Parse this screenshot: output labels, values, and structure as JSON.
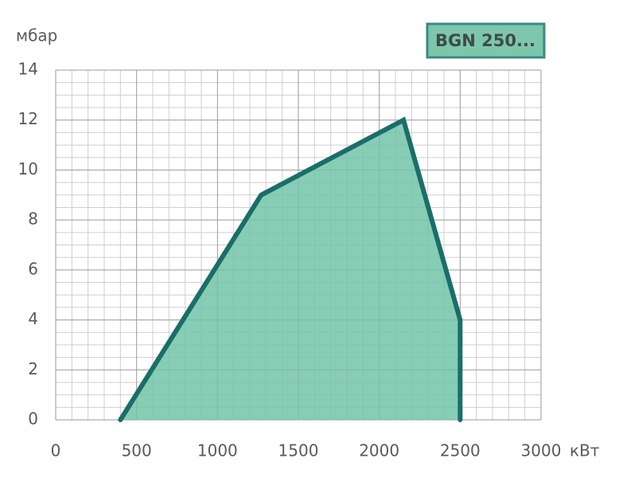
{
  "chart_data": {
    "type": "area",
    "title": "BGN 250...",
    "y_label": "мбар",
    "x_label": "кВт",
    "x": [
      400,
      1270,
      2150,
      2500,
      2500
    ],
    "values": [
      0,
      9,
      12,
      4,
      0
    ],
    "fill_color": "#72c3a8",
    "line_color": "#1a6e69",
    "xlim": [
      0,
      3000
    ],
    "xticks": [
      0,
      500,
      1000,
      1500,
      2000,
      2500,
      3000
    ],
    "ylim": [
      0,
      14
    ],
    "yticks": [
      0,
      2,
      4,
      6,
      8,
      10,
      12,
      14
    ],
    "grid": true
  }
}
